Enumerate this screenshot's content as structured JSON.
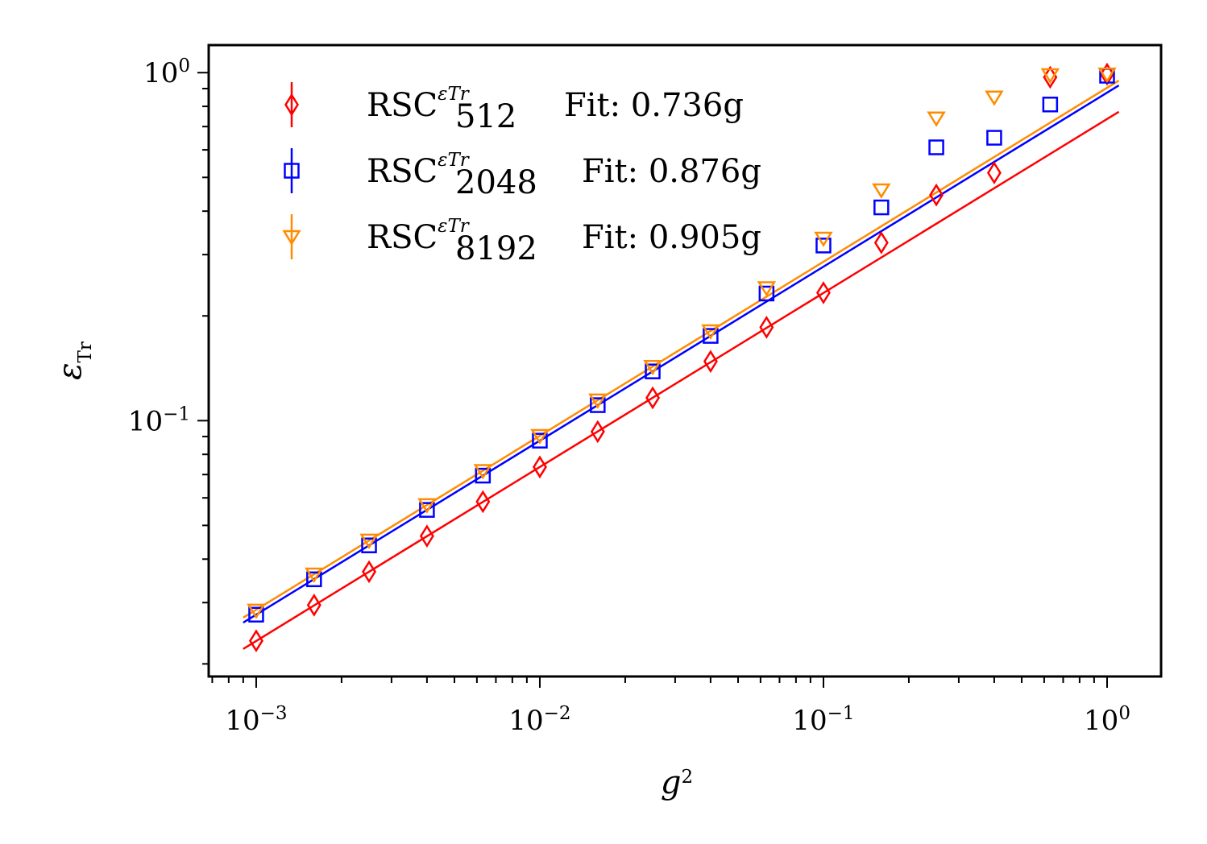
{
  "chart_data": {
    "type": "scatter",
    "title": "",
    "xlabel": "g",
    "xlabel_sup": "2",
    "ylabel": "ε",
    "ylabel_sub": "Tr",
    "xscale": "log",
    "yscale": "log",
    "xlim": [
      0.00068,
      1.55
    ],
    "ylim": [
      0.0184,
      1.2
    ],
    "grid": false,
    "legend_position": "top-left",
    "x_tick_labels": [
      {
        "value": 0.001,
        "base": "10",
        "exp": "−3"
      },
      {
        "value": 0.01,
        "base": "10",
        "exp": "−2"
      },
      {
        "value": 0.1,
        "base": "10",
        "exp": "−1"
      },
      {
        "value": 1,
        "base": "10",
        "exp": "0"
      }
    ],
    "y_tick_labels": [
      {
        "value": 0.1,
        "base": "10",
        "exp": "−1"
      },
      {
        "value": 1,
        "base": "10",
        "exp": "0"
      }
    ],
    "x": [
      0.001,
      0.0016,
      0.0025,
      0.004,
      0.0063,
      0.01,
      0.016,
      0.025,
      0.04,
      0.063,
      0.1,
      0.16,
      0.25,
      0.4,
      0.63,
      1.0
    ],
    "series": [
      {
        "name_main": "RSC",
        "name_sup": "εTr",
        "name_sub": "512",
        "fit_label": "Fit: 0.736g",
        "fit_coef": 0.736,
        "color": "#ff0000",
        "marker": "diamond",
        "values": [
          0.0233,
          0.0295,
          0.0368,
          0.0466,
          0.0585,
          0.0736,
          0.093,
          0.1163,
          0.148,
          0.1855,
          0.2331,
          0.3245,
          0.445,
          0.5153,
          0.97,
          0.99
        ]
      },
      {
        "name_main": "RSC",
        "name_sup": "εTr",
        "name_sub": "2048",
        "fit_label": "Fit: 0.876g",
        "fit_coef": 0.876,
        "color": "#0000ff",
        "marker": "square",
        "values": [
          0.0277,
          0.035,
          0.0438,
          0.0554,
          0.0695,
          0.0876,
          0.1108,
          0.1385,
          0.1752,
          0.2319,
          0.3186,
          0.41,
          0.61,
          0.65,
          0.81,
          0.98
        ]
      },
      {
        "name_main": "RSC",
        "name_sup": "εTr",
        "name_sub": "8192",
        "fit_label": "Fit: 0.905g",
        "fit_coef": 0.905,
        "color": "#ff8c00",
        "marker": "triangle-down",
        "values": [
          0.0285,
          0.0362,
          0.0453,
          0.0573,
          0.0718,
          0.0905,
          0.1145,
          0.143,
          0.181,
          0.2407,
          0.334,
          0.46,
          0.74,
          0.85,
          0.985,
          0.99
        ]
      }
    ]
  }
}
